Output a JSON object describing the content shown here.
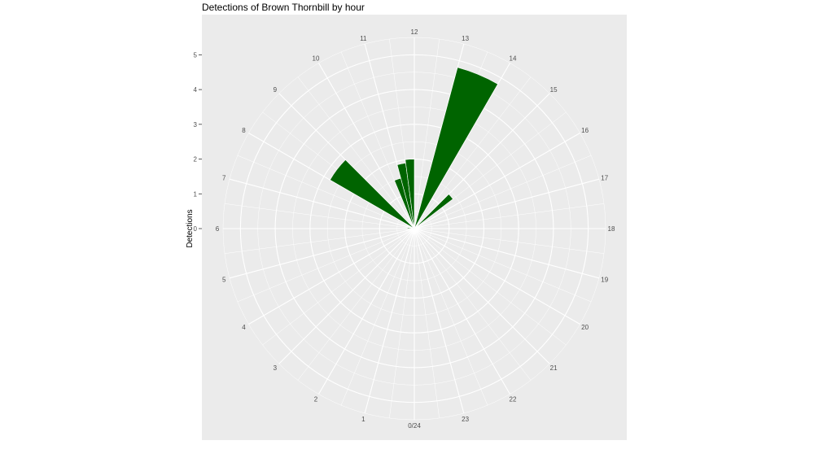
{
  "chart_data": {
    "type": "bar",
    "coord": "polar",
    "title": "Detections of Brown Thornbill by hour",
    "xlabel": "",
    "ylabel": "Detections",
    "x_tick_labels": [
      "0/24",
      "1",
      "2",
      "3",
      "4",
      "5",
      "6",
      "7",
      "8",
      "9",
      "10",
      "11",
      "12",
      "13",
      "14",
      "15",
      "16",
      "17",
      "18",
      "19",
      "20",
      "21",
      "22",
      "23"
    ],
    "y_ticks": [
      0,
      1,
      2,
      3,
      4,
      5
    ],
    "ylim": [
      0,
      5.5
    ],
    "bar_color": "#006400",
    "panel_color": "#ebebeb",
    "grid_color": "#ffffff",
    "bars": [
      {
        "start": 6.0,
        "end": 6.5,
        "value": 0.2
      },
      {
        "start": 8.0,
        "end": 9.0,
        "value": 2.8
      },
      {
        "start": 10.5,
        "end": 11.0,
        "value": 1.5
      },
      {
        "start": 11.0,
        "end": 11.5,
        "value": 1.9
      },
      {
        "start": 11.5,
        "end": 12.0,
        "value": 2.0
      },
      {
        "start": 13.0,
        "end": 14.0,
        "value": 4.8
      },
      {
        "start": 15.0,
        "end": 15.5,
        "value": 1.4
      }
    ]
  }
}
